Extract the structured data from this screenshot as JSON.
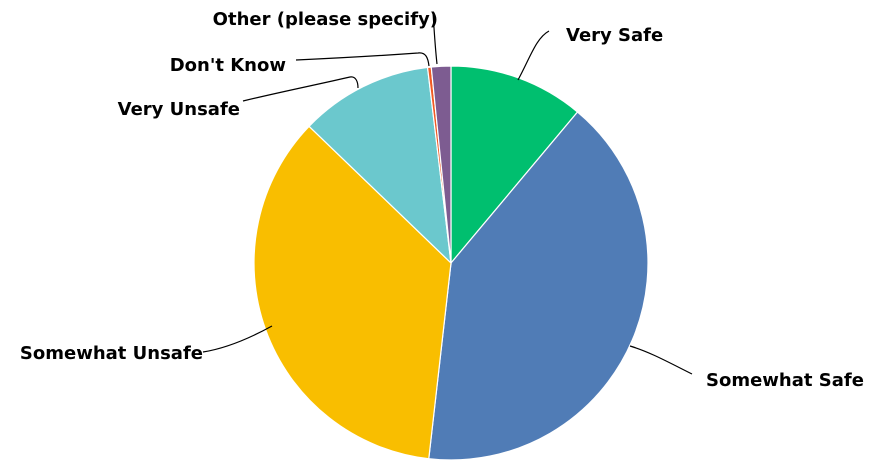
{
  "chart_data": {
    "type": "pie",
    "start_angle_deg": 0,
    "direction": "clockwise",
    "slices": [
      {
        "label": "Very Safe",
        "value": 11.1,
        "color": "#00bf6f"
      },
      {
        "label": "Somewhat Safe",
        "value": 40.7,
        "color": "#507cb6"
      },
      {
        "label": "Somewhat Unsafe",
        "value": 35.4,
        "color": "#f9be00"
      },
      {
        "label": "Very Unsafe",
        "value": 10.9,
        "color": "#6bc8cd"
      },
      {
        "label": "Don't Know",
        "value": 0.3,
        "color": "#f05b24"
      },
      {
        "label": "Other (please specify)",
        "value": 1.6,
        "color": "#7d5c91"
      }
    ]
  }
}
